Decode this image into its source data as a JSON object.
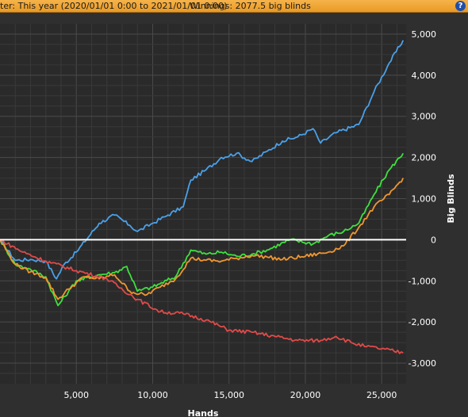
{
  "header": {
    "filter_text": "ter: This year (2020/01/01 0:00 to 2021/01/01 0:00)",
    "winnings_text": "Winnings: 2077.5 big blinds",
    "help_glyph": "?"
  },
  "chart_data": {
    "type": "line",
    "title": "",
    "xlabel": "Hands",
    "ylabel": "Big Blinds",
    "xlim": [
      0,
      26600
    ],
    "ylim": [
      -3500,
      5250
    ],
    "x_ticks": [
      5000,
      10000,
      15000,
      20000,
      25000
    ],
    "x_tick_labels": [
      "5,000",
      "10,000",
      "15,000",
      "20,000",
      "25,000"
    ],
    "y_ticks": [
      5000,
      4000,
      3000,
      2000,
      1000,
      0,
      -1000,
      -2000,
      -3000
    ],
    "y_tick_labels": [
      "5,000",
      "4,000",
      "3,000",
      "2,000",
      "1,000",
      "0",
      "-1,000",
      "-2,000",
      "-3,000"
    ],
    "grid": true,
    "legend": "none",
    "series": [
      {
        "color": "#4aa0e8",
        "x": [
          0,
          1000,
          2000,
          3000,
          3700,
          4200,
          5000,
          6500,
          7500,
          8500,
          9000,
          10000,
          11000,
          12000,
          12500,
          13500,
          14500,
          15500,
          16500,
          17500,
          18500,
          19500,
          20500,
          21000,
          22000,
          23500,
          24500,
          25500,
          26400
        ],
        "y": [
          0,
          -500,
          -480,
          -520,
          -950,
          -600,
          -300,
          400,
          600,
          350,
          200,
          400,
          600,
          800,
          1450,
          1700,
          2000,
          2100,
          1900,
          2150,
          2400,
          2500,
          2700,
          2350,
          2600,
          2800,
          3600,
          4300,
          4850
        ]
      },
      {
        "color": "#3ee03e",
        "x": [
          0,
          1000,
          2000,
          3000,
          3800,
          4500,
          5000,
          6500,
          7500,
          8300,
          9000,
          10000,
          11500,
          12500,
          13500,
          14500,
          15500,
          16500,
          17500,
          19000,
          20500,
          21500,
          22500,
          23500,
          24500,
          25500,
          26400
        ],
        "y": [
          0,
          -600,
          -720,
          -900,
          -1600,
          -1250,
          -1000,
          -850,
          -800,
          -650,
          -1250,
          -1150,
          -900,
          -250,
          -350,
          -300,
          -400,
          -350,
          -250,
          0,
          -100,
          100,
          200,
          400,
          1100,
          1700,
          2100
        ]
      },
      {
        "color": "#f0962e",
        "x": [
          0,
          1000,
          2000,
          3000,
          3800,
          4500,
          5500,
          6500,
          7500,
          8500,
          9500,
          10500,
          11500,
          12500,
          13500,
          14500,
          15500,
          16500,
          17500,
          18500,
          20000,
          21500,
          22500,
          23500,
          24500,
          25500,
          26400
        ],
        "y": [
          0,
          -600,
          -780,
          -920,
          -1450,
          -1200,
          -900,
          -950,
          -850,
          -1250,
          -1350,
          -1150,
          -950,
          -450,
          -500,
          -520,
          -450,
          -380,
          -420,
          -480,
          -400,
          -300,
          -150,
          300,
          800,
          1100,
          1500
        ]
      },
      {
        "color": "#e04a48",
        "x": [
          0,
          1500,
          3000,
          5000,
          7000,
          9000,
          10500,
          12000,
          13500,
          15000,
          16500,
          18000,
          19500,
          21000,
          22000,
          23000,
          24000,
          25000,
          26400
        ],
        "y": [
          0,
          -300,
          -520,
          -750,
          -950,
          -1450,
          -1750,
          -1800,
          -1950,
          -2200,
          -2250,
          -2350,
          -2450,
          -2450,
          -2350,
          -2500,
          -2600,
          -2650,
          -2750
        ]
      }
    ]
  }
}
